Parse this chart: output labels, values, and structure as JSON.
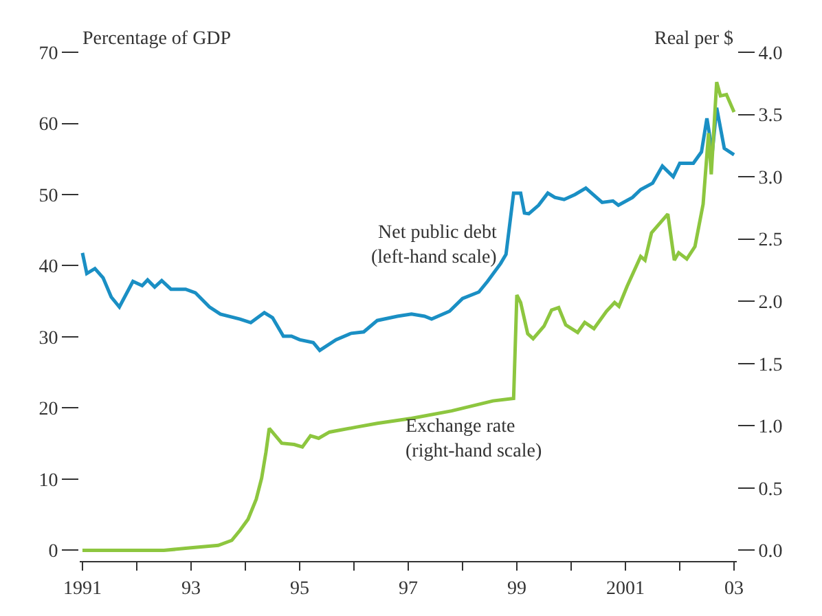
{
  "chart_data": {
    "type": "line",
    "ylabel": "Percentage of GDP",
    "y2label": "Real per $",
    "series": [
      {
        "name": "Net public debt\n(left-hand scale)",
        "color": "#1a8fc4",
        "x": [
          1991.0,
          1991.08,
          1991.23,
          1991.38,
          1991.53,
          1991.68,
          1991.93,
          1992.1,
          1992.2,
          1992.33,
          1992.46,
          1992.63,
          1992.9,
          1993.08,
          1993.34,
          1993.54,
          1993.9,
          1994.1,
          1994.35,
          1994.5,
          1994.7,
          1994.85,
          1995.0,
          1995.25,
          1995.37,
          1995.67,
          1995.95,
          1996.18,
          1996.43,
          1996.8,
          1997.06,
          1997.3,
          1997.43,
          1997.76,
          1998.0,
          1998.3,
          1998.46,
          1998.7,
          1998.8,
          1998.94,
          1999.07,
          1999.14,
          1999.22,
          1999.4,
          1999.57,
          1999.7,
          1999.87,
          2000.07,
          2000.27,
          2000.57,
          2000.77,
          2000.87,
          2001.13,
          2001.28,
          2001.5,
          2001.68,
          2001.88,
          2002.0,
          2002.25,
          2002.4,
          2002.5,
          2002.6,
          2002.68,
          2002.82,
          2003.0
        ],
        "values": [
          41.8,
          38.9,
          39.6,
          38.3,
          35.6,
          34.2,
          37.8,
          37.2,
          38.0,
          37.0,
          37.9,
          36.7,
          36.7,
          36.2,
          34.2,
          33.2,
          32.5,
          32.0,
          33.4,
          32.7,
          30.1,
          30.1,
          29.6,
          29.2,
          28.1,
          29.6,
          30.5,
          30.7,
          32.3,
          32.9,
          33.2,
          32.9,
          32.5,
          33.6,
          35.4,
          36.3,
          37.8,
          40.3,
          41.6,
          50.2,
          50.2,
          47.4,
          47.3,
          48.5,
          50.2,
          49.6,
          49.3,
          50.0,
          50.9,
          48.9,
          49.1,
          48.5,
          49.6,
          50.7,
          51.6,
          54.0,
          52.5,
          54.4,
          54.4,
          56.0,
          60.7,
          56.0,
          62.2,
          56.5,
          55.6
        ]
      },
      {
        "name": "Exchange rate\n(right-hand scale)",
        "color": "#8dc63f",
        "axis": "y2",
        "x": [
          1991.0,
          1992.0,
          1992.5,
          1993.0,
          1993.5,
          1993.75,
          1993.9,
          1994.05,
          1994.2,
          1994.3,
          1994.38,
          1994.44,
          1994.67,
          1994.9,
          1995.05,
          1995.2,
          1995.35,
          1995.55,
          1996.05,
          1996.43,
          1997.06,
          1997.8,
          1998.56,
          1998.94,
          1999.0,
          1999.07,
          1999.2,
          1999.3,
          1999.5,
          1999.64,
          1999.77,
          1999.9,
          2000.12,
          2000.25,
          2000.42,
          2000.65,
          2000.8,
          2000.88,
          2001.03,
          2001.28,
          2001.36,
          2001.48,
          2001.78,
          2001.9,
          2001.98,
          2002.13,
          2002.28,
          2002.43,
          2002.53,
          2002.58,
          2002.68,
          2002.75,
          2002.86,
          2003.0
        ],
        "values": [
          0.0,
          0.0,
          0.0,
          0.02,
          0.04,
          0.08,
          0.16,
          0.25,
          0.41,
          0.58,
          0.79,
          0.98,
          0.86,
          0.85,
          0.83,
          0.92,
          0.9,
          0.95,
          0.99,
          1.02,
          1.06,
          1.12,
          1.2,
          1.22,
          2.05,
          1.99,
          1.74,
          1.7,
          1.8,
          1.93,
          1.95,
          1.81,
          1.75,
          1.83,
          1.78,
          1.92,
          1.99,
          1.96,
          2.12,
          2.36,
          2.33,
          2.55,
          2.7,
          2.33,
          2.39,
          2.34,
          2.44,
          2.78,
          3.35,
          3.02,
          3.76,
          3.65,
          3.66,
          3.52
        ]
      }
    ],
    "xlim": [
      1990.95,
      2003.05
    ],
    "xticks": [
      {
        "value": 1991,
        "label": "1991"
      },
      {
        "value": 1992,
        "label": null
      },
      {
        "value": 1993,
        "label": "93"
      },
      {
        "value": 1994,
        "label": null
      },
      {
        "value": 1995,
        "label": "95"
      },
      {
        "value": 1996,
        "label": null
      },
      {
        "value": 1997,
        "label": "97"
      },
      {
        "value": 1998,
        "label": null
      },
      {
        "value": 1999,
        "label": "99"
      },
      {
        "value": 2000,
        "label": null
      },
      {
        "value": 2001,
        "label": "2001"
      },
      {
        "value": 2002,
        "label": null
      },
      {
        "value": 2003,
        "label": "03"
      }
    ],
    "ylim": [
      -1.5,
      70
    ],
    "yticks": [
      0,
      10,
      20,
      30,
      40,
      50,
      60,
      70
    ],
    "y2lim": [
      -0.0857,
      4.0
    ],
    "y2ticks": [
      {
        "value": 0,
        "label": "0.0"
      },
      {
        "value": 0.5,
        "label": "0.5"
      },
      {
        "value": 1,
        "label": "1.0"
      },
      {
        "value": 1.5,
        "label": "1.5"
      },
      {
        "value": 2,
        "label": "2.0"
      },
      {
        "value": 2.5,
        "label": "2.5"
      },
      {
        "value": 3,
        "label": "3.0"
      },
      {
        "value": 3.5,
        "label": "3.5"
      },
      {
        "value": 4,
        "label": "4.0"
      }
    ],
    "legend": false,
    "marker": "none",
    "line_style": "solid"
  }
}
